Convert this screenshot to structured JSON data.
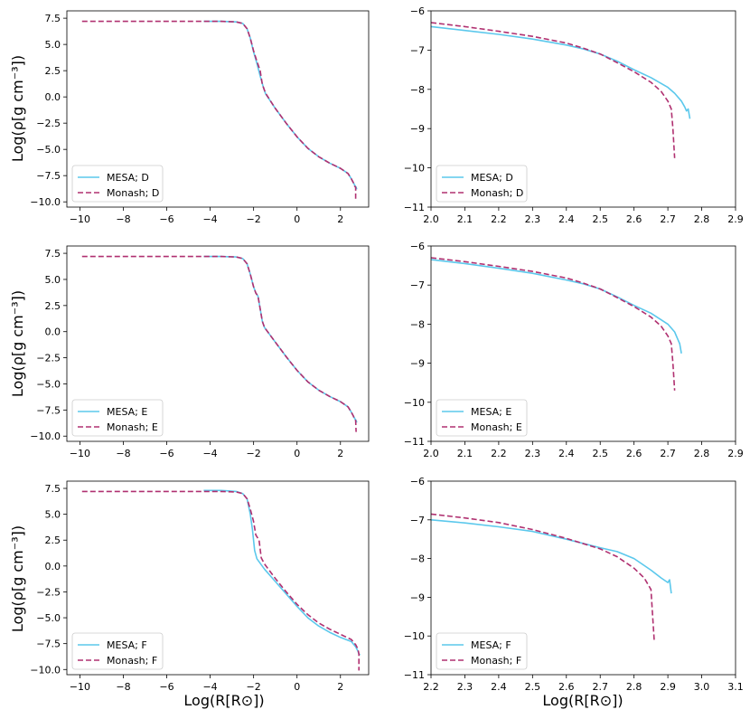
{
  "figure": {
    "ylabel": "Log(ρ[g cm⁻³])",
    "xlabel": "Log(R[R⊙])"
  },
  "colors": {
    "mesa": "#5bc8ec",
    "monash": "#b03070",
    "axes": "#000000"
  },
  "chart_data": [
    {
      "type": "line",
      "row": 0,
      "col": 0,
      "xlim": [
        -10.6,
        3.3
      ],
      "ylim": [
        -10.5,
        8.2
      ],
      "xticks": [
        -10,
        -8,
        -6,
        -4,
        -2,
        0,
        2
      ],
      "xtick_labels": [
        "−10",
        "−8",
        "−6",
        "−4",
        "−2",
        "0",
        "2"
      ],
      "yticks": [
        -10,
        -7.5,
        -5,
        -2.5,
        0,
        2.5,
        5,
        7.5
      ],
      "ytick_labels": [
        "−10.0",
        "−7.5",
        "−5.0",
        "−2.5",
        "0.0",
        "2.5",
        "5.0",
        "7.5"
      ],
      "legend": "lower left",
      "series": [
        {
          "name": "MESA; D",
          "style": "solid",
          "x": [
            -4.3,
            -3.5,
            -2.8,
            -2.5,
            -2.3,
            -2.15,
            -2.0,
            -1.85,
            -1.7,
            -1.55,
            -1.45,
            -1.0,
            -0.5,
            0.0,
            0.5,
            1.0,
            1.5,
            2.0,
            2.35,
            2.5,
            2.6,
            2.68,
            2.72,
            2.75
          ],
          "y": [
            7.2,
            7.2,
            7.15,
            7.0,
            6.5,
            5.6,
            4.3,
            3.2,
            2.0,
            0.9,
            0.3,
            -1.1,
            -2.5,
            -3.8,
            -4.9,
            -5.7,
            -6.3,
            -6.8,
            -7.3,
            -7.8,
            -8.2,
            -8.5,
            -8.6,
            -8.8
          ]
        },
        {
          "name": "Monash; D",
          "style": "dashed",
          "x": [
            -9.9,
            -8.0,
            -6.0,
            -4.5,
            -3.5,
            -2.8,
            -2.5,
            -2.3,
            -2.15,
            -2.0,
            -1.85,
            -1.7,
            -1.6,
            -1.45,
            -1.0,
            -0.5,
            0.0,
            0.5,
            1.0,
            1.5,
            2.0,
            2.35,
            2.5,
            2.6,
            2.65,
            2.7,
            2.7
          ],
          "y": [
            7.2,
            7.2,
            7.2,
            7.2,
            7.2,
            7.15,
            7.0,
            6.5,
            5.6,
            4.4,
            3.4,
            2.5,
            1.2,
            0.35,
            -1.1,
            -2.5,
            -3.8,
            -4.9,
            -5.7,
            -6.3,
            -6.8,
            -7.3,
            -7.8,
            -8.2,
            -8.5,
            -8.6,
            -9.7
          ]
        }
      ]
    },
    {
      "type": "line",
      "row": 0,
      "col": 1,
      "xlim": [
        2.0,
        2.9
      ],
      "ylim": [
        -11,
        -6
      ],
      "xticks": [
        2.0,
        2.1,
        2.2,
        2.3,
        2.4,
        2.5,
        2.6,
        2.7,
        2.8,
        2.9
      ],
      "xtick_labels": [
        "2.0",
        "2.1",
        "2.2",
        "2.3",
        "2.4",
        "2.5",
        "2.6",
        "2.7",
        "2.8",
        "2.9"
      ],
      "yticks": [
        -11,
        -10,
        -9,
        -8,
        -7,
        -6
      ],
      "ytick_labels": [
        "−11",
        "−10",
        "−9",
        "−8",
        "−7",
        "−6"
      ],
      "legend": "lower left",
      "series": [
        {
          "name": "MESA; D",
          "style": "solid",
          "x": [
            2.0,
            2.1,
            2.2,
            2.3,
            2.4,
            2.45,
            2.5,
            2.55,
            2.6,
            2.65,
            2.7,
            2.72,
            2.74,
            2.75,
            2.755,
            2.76,
            2.765
          ],
          "y": [
            -6.4,
            -6.5,
            -6.6,
            -6.72,
            -6.87,
            -6.97,
            -7.1,
            -7.28,
            -7.5,
            -7.7,
            -7.95,
            -8.1,
            -8.3,
            -8.45,
            -8.55,
            -8.5,
            -8.75
          ]
        },
        {
          "name": "Monash; D",
          "style": "dashed",
          "x": [
            2.0,
            2.1,
            2.2,
            2.3,
            2.4,
            2.45,
            2.5,
            2.55,
            2.6,
            2.65,
            2.68,
            2.7,
            2.71,
            2.715,
            2.72
          ],
          "y": [
            -6.3,
            -6.4,
            -6.52,
            -6.65,
            -6.82,
            -6.95,
            -7.1,
            -7.32,
            -7.55,
            -7.82,
            -8.05,
            -8.3,
            -8.5,
            -9.0,
            -9.75
          ]
        }
      ]
    },
    {
      "type": "line",
      "row": 1,
      "col": 0,
      "xlim": [
        -10.6,
        3.3
      ],
      "ylim": [
        -10.5,
        8.2
      ],
      "xticks": [
        -10,
        -8,
        -6,
        -4,
        -2,
        0,
        2
      ],
      "xtick_labels": [
        "−10",
        "−8",
        "−6",
        "−4",
        "−2",
        "0",
        "2"
      ],
      "yticks": [
        -10,
        -7.5,
        -5,
        -2.5,
        0,
        2.5,
        5,
        7.5
      ],
      "ytick_labels": [
        "−10.0",
        "−7.5",
        "−5.0",
        "−2.5",
        "0.0",
        "2.5",
        "5.0",
        "7.5"
      ],
      "legend": "lower left",
      "series": [
        {
          "name": "MESA; E",
          "style": "solid",
          "x": [
            -4.3,
            -3.5,
            -2.8,
            -2.5,
            -2.3,
            -2.15,
            -2.0,
            -1.9,
            -1.8,
            -1.7,
            -1.6,
            -1.5,
            -1.0,
            -0.5,
            0.0,
            0.5,
            1.0,
            1.5,
            2.0,
            2.35,
            2.5,
            2.6,
            2.68,
            2.72,
            2.75
          ],
          "y": [
            7.2,
            7.2,
            7.15,
            7.0,
            6.5,
            5.5,
            4.3,
            3.7,
            3.4,
            2.2,
            1.0,
            0.4,
            -1.0,
            -2.4,
            -3.7,
            -4.8,
            -5.6,
            -6.2,
            -6.7,
            -7.2,
            -7.7,
            -8.1,
            -8.4,
            -8.5,
            -8.7
          ]
        },
        {
          "name": "Monash; E",
          "style": "dashed",
          "x": [
            -9.9,
            -8.0,
            -6.0,
            -4.5,
            -3.5,
            -2.8,
            -2.5,
            -2.3,
            -2.15,
            -2.0,
            -1.9,
            -1.8,
            -1.7,
            -1.6,
            -1.5,
            -1.0,
            -0.5,
            0.0,
            0.5,
            1.0,
            1.5,
            2.0,
            2.35,
            2.5,
            2.6,
            2.65,
            2.7,
            2.72
          ],
          "y": [
            7.2,
            7.2,
            7.2,
            7.2,
            7.2,
            7.15,
            7.0,
            6.5,
            5.5,
            4.3,
            3.7,
            3.4,
            2.2,
            1.0,
            0.4,
            -1.0,
            -2.4,
            -3.7,
            -4.8,
            -5.6,
            -6.2,
            -6.7,
            -7.2,
            -7.7,
            -8.1,
            -8.4,
            -8.5,
            -9.6
          ]
        }
      ]
    },
    {
      "type": "line",
      "row": 1,
      "col": 1,
      "xlim": [
        2.0,
        2.9
      ],
      "ylim": [
        -11,
        -6
      ],
      "xticks": [
        2.0,
        2.1,
        2.2,
        2.3,
        2.4,
        2.5,
        2.6,
        2.7,
        2.8,
        2.9
      ],
      "xtick_labels": [
        "2.0",
        "2.1",
        "2.2",
        "2.3",
        "2.4",
        "2.5",
        "2.6",
        "2.7",
        "2.8",
        "2.9"
      ],
      "yticks": [
        -11,
        -10,
        -9,
        -8,
        -7,
        -6
      ],
      "ytick_labels": [
        "−11",
        "−10",
        "−9",
        "−8",
        "−7",
        "−6"
      ],
      "legend": "lower left",
      "series": [
        {
          "name": "MESA; E",
          "style": "solid",
          "x": [
            2.0,
            2.1,
            2.2,
            2.3,
            2.4,
            2.45,
            2.5,
            2.55,
            2.6,
            2.65,
            2.7,
            2.72,
            2.73,
            2.735,
            2.74
          ],
          "y": [
            -6.35,
            -6.45,
            -6.57,
            -6.7,
            -6.87,
            -6.97,
            -7.1,
            -7.3,
            -7.52,
            -7.72,
            -8.0,
            -8.2,
            -8.4,
            -8.5,
            -8.75
          ]
        },
        {
          "name": "Monash; E",
          "style": "dashed",
          "x": [
            2.0,
            2.1,
            2.2,
            2.3,
            2.4,
            2.45,
            2.5,
            2.55,
            2.6,
            2.65,
            2.68,
            2.7,
            2.71,
            2.715,
            2.72
          ],
          "y": [
            -6.3,
            -6.4,
            -6.52,
            -6.65,
            -6.82,
            -6.95,
            -7.1,
            -7.32,
            -7.55,
            -7.82,
            -8.05,
            -8.3,
            -8.5,
            -9.0,
            -9.7
          ]
        }
      ]
    },
    {
      "type": "line",
      "row": 2,
      "col": 0,
      "xlim": [
        -10.6,
        3.3
      ],
      "ylim": [
        -10.5,
        8.2
      ],
      "xticks": [
        -10,
        -8,
        -6,
        -4,
        -2,
        0,
        2
      ],
      "xtick_labels": [
        "−10",
        "−8",
        "−6",
        "−4",
        "−2",
        "0",
        "2"
      ],
      "yticks": [
        -10,
        -7.5,
        -5,
        -2.5,
        0,
        2.5,
        5,
        7.5
      ],
      "ytick_labels": [
        "−10.0",
        "−7.5",
        "−5.0",
        "−2.5",
        "0.0",
        "2.5",
        "5.0",
        "7.5"
      ],
      "legend": "lower left",
      "series": [
        {
          "name": "MESA; F",
          "style": "solid",
          "x": [
            -4.3,
            -3.5,
            -2.8,
            -2.5,
            -2.3,
            -2.15,
            -2.05,
            -1.95,
            -1.85,
            -1.5,
            -1.0,
            -0.5,
            0.0,
            0.5,
            1.0,
            1.5,
            2.0,
            2.5,
            2.7,
            2.8,
            2.85,
            2.9
          ],
          "y": [
            7.3,
            7.3,
            7.2,
            7.0,
            6.5,
            5.0,
            3.5,
            1.5,
            0.7,
            -0.3,
            -1.5,
            -2.7,
            -3.9,
            -5.0,
            -5.8,
            -6.4,
            -6.9,
            -7.3,
            -7.8,
            -8.2,
            -8.5,
            -8.6
          ]
        },
        {
          "name": "Monash; F",
          "style": "dashed",
          "x": [
            -9.9,
            -8.0,
            -6.0,
            -4.5,
            -3.5,
            -2.8,
            -2.5,
            -2.3,
            -2.15,
            -2.0,
            -1.9,
            -1.75,
            -1.65,
            -1.5,
            -1.0,
            -0.5,
            0.0,
            0.5,
            1.0,
            1.5,
            2.0,
            2.5,
            2.7,
            2.8,
            2.85,
            2.85
          ],
          "y": [
            7.2,
            7.2,
            7.2,
            7.2,
            7.2,
            7.15,
            7.0,
            6.5,
            5.5,
            4.3,
            3.0,
            2.5,
            0.8,
            0.2,
            -1.2,
            -2.5,
            -3.7,
            -4.7,
            -5.5,
            -6.1,
            -6.6,
            -7.1,
            -7.6,
            -8.0,
            -8.5,
            -10.1
          ]
        }
      ]
    },
    {
      "type": "line",
      "row": 2,
      "col": 1,
      "xlim": [
        2.2,
        3.1
      ],
      "ylim": [
        -11,
        -6
      ],
      "xticks": [
        2.2,
        2.3,
        2.4,
        2.5,
        2.6,
        2.7,
        2.8,
        2.9,
        3.0,
        3.1
      ],
      "xtick_labels": [
        "2.2",
        "2.3",
        "2.4",
        "2.5",
        "2.6",
        "2.7",
        "2.8",
        "2.9",
        "3.0",
        "3.1"
      ],
      "yticks": [
        -11,
        -10,
        -9,
        -8,
        -7,
        -6
      ],
      "ytick_labels": [
        "−11",
        "−10",
        "−9",
        "−8",
        "−7",
        "−6"
      ],
      "legend": "lower left",
      "series": [
        {
          "name": "MESA; F",
          "style": "solid",
          "x": [
            2.2,
            2.3,
            2.4,
            2.5,
            2.6,
            2.7,
            2.75,
            2.8,
            2.85,
            2.88,
            2.9,
            2.905,
            2.91
          ],
          "y": [
            -7.0,
            -7.08,
            -7.18,
            -7.3,
            -7.5,
            -7.72,
            -7.82,
            -8.0,
            -8.3,
            -8.5,
            -8.62,
            -8.55,
            -8.9
          ]
        },
        {
          "name": "Monash; F",
          "style": "dashed",
          "x": [
            2.2,
            2.3,
            2.4,
            2.5,
            2.6,
            2.7,
            2.75,
            2.8,
            2.83,
            2.85,
            2.855,
            2.86
          ],
          "y": [
            -6.85,
            -6.95,
            -7.07,
            -7.25,
            -7.48,
            -7.75,
            -7.95,
            -8.25,
            -8.5,
            -8.8,
            -9.5,
            -10.15
          ]
        }
      ]
    }
  ]
}
